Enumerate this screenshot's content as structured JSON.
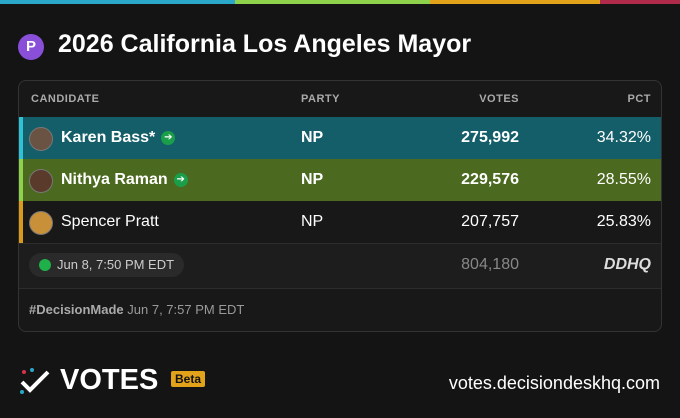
{
  "header": {
    "badge": "P",
    "title": "2026 California Los Angeles Mayor"
  },
  "table": {
    "columns": [
      "CANDIDATE",
      "PARTY",
      "VOTES",
      "PCT"
    ],
    "rows": [
      [
        "Karen Bass*",
        "NP",
        "275,992",
        "34.32%"
      ],
      [
        "Nithya Raman",
        "NP",
        "229,576",
        "28.55%"
      ],
      [
        "Spencer Pratt",
        "NP",
        "207,757",
        "25.83%"
      ]
    ],
    "footer": {
      "updated": "Jun 8, 7:50 PM EDT",
      "total": "804,180",
      "source": "DDHQ"
    },
    "decision": {
      "tag": "#DecisionMade",
      "time": "Jun 7, 7:57 PM EDT"
    }
  },
  "brand": {
    "name": "VOTES",
    "badge": "Beta",
    "url": "votes.decisiondeskhq.com"
  }
}
